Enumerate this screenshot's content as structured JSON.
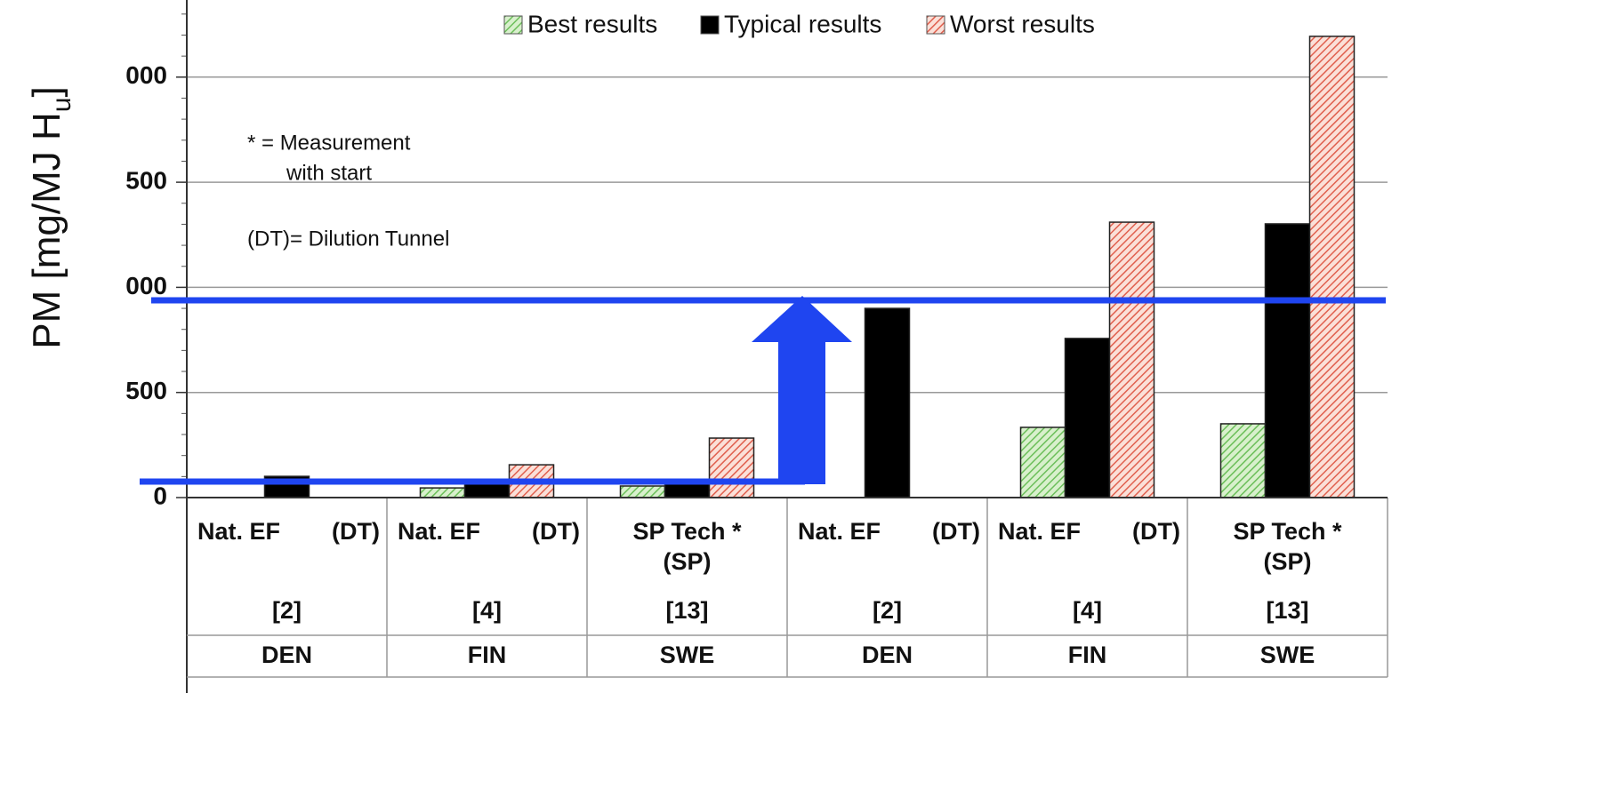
{
  "chart_data": {
    "type": "bar",
    "y_label": {
      "text": "PM [mg/MJ H",
      "sub": "u",
      "end": "]"
    },
    "methods": [
      "Nat. EF",
      "Nat. EF",
      "SP Tech *",
      "Nat. EF",
      "Nat. EF",
      "SP Tech *"
    ],
    "method_notes": [
      "(DT)",
      "(DT)",
      "(SP)",
      "(DT)",
      "(DT)",
      "(SP)"
    ],
    "references": [
      "[2]",
      "[4]",
      "[13]",
      "[2]",
      "[4]",
      "[13]"
    ],
    "categories": [
      "DEN",
      "FIN",
      "SWE",
      "DEN",
      "FIN",
      "SWE"
    ],
    "series": [
      {
        "name": "Best results",
        "color": "#6cbf5a",
        "values": [
          null,
          46,
          55,
          null,
          334,
          351
        ]
      },
      {
        "name": "Typical results",
        "color": "#000000",
        "values": [
          101,
          72,
          72,
          900,
          757,
          1302
        ]
      },
      {
        "name": "Worst results",
        "color": "#e0604e",
        "values": [
          null,
          156,
          283,
          null,
          1310,
          2194
        ]
      }
    ],
    "ylim": [
      0,
      2360
    ],
    "yticks": [
      0,
      500,
      {
        "value": 1000,
        "label": "000"
      },
      {
        "value": 1500,
        "label": "500"
      },
      {
        "value": 2000,
        "label": "000"
      }
    ],
    "grid": true,
    "annotations": [
      "* = Measurement",
      "with start",
      "(DT)= Dilution Tunnel"
    ]
  }
}
